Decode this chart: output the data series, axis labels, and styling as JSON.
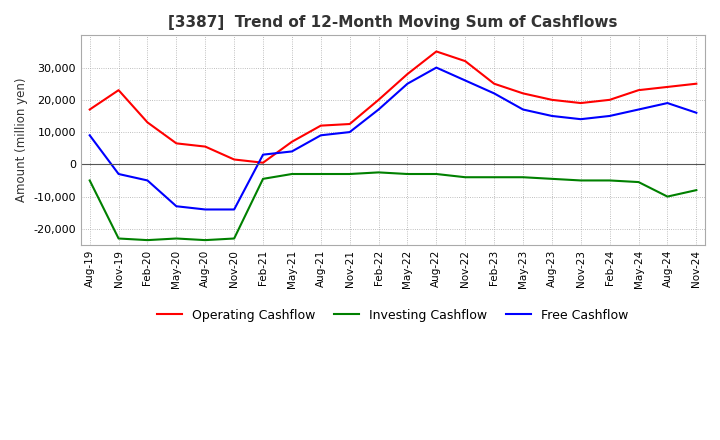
{
  "title": "[3387]  Trend of 12-Month Moving Sum of Cashflows",
  "ylabel": "Amount (million yen)",
  "ylim": [
    -25000,
    40000
  ],
  "yticks": [
    -20000,
    -10000,
    0,
    10000,
    20000,
    30000
  ],
  "background_color": "#ffffff",
  "grid_color": "#aaaaaa",
  "x_labels": [
    "Aug-19",
    "Nov-19",
    "Feb-20",
    "May-20",
    "Aug-20",
    "Nov-20",
    "Feb-21",
    "May-21",
    "Aug-21",
    "Nov-21",
    "Feb-22",
    "May-22",
    "Aug-22",
    "Nov-22",
    "Feb-23",
    "May-23",
    "Aug-23",
    "Nov-23",
    "Feb-24",
    "May-24",
    "Aug-24",
    "Nov-24"
  ],
  "operating_cashflow": [
    17000,
    23000,
    13000,
    6500,
    5500,
    1500,
    500,
    7000,
    12000,
    12500,
    20000,
    28000,
    35000,
    32000,
    25000,
    22000,
    20000,
    19000,
    20000,
    23000,
    24000,
    25000
  ],
  "investing_cashflow": [
    -5000,
    -23000,
    -23500,
    -23000,
    -23500,
    -23000,
    -4500,
    -3000,
    -3000,
    -3000,
    -2500,
    -3000,
    -3000,
    -4000,
    -4000,
    -4000,
    -4500,
    -5000,
    -5000,
    -5500,
    -10000,
    -8000
  ],
  "free_cashflow": [
    9000,
    -3000,
    -5000,
    -13000,
    -14000,
    -14000,
    3000,
    4000,
    9000,
    10000,
    17000,
    25000,
    30000,
    26000,
    22000,
    17000,
    15000,
    14000,
    15000,
    17000,
    19000,
    16000
  ],
  "line_colors": {
    "operating": "#ff0000",
    "investing": "#008000",
    "free": "#0000ff"
  },
  "legend_labels": [
    "Operating Cashflow",
    "Investing Cashflow",
    "Free Cashflow"
  ]
}
